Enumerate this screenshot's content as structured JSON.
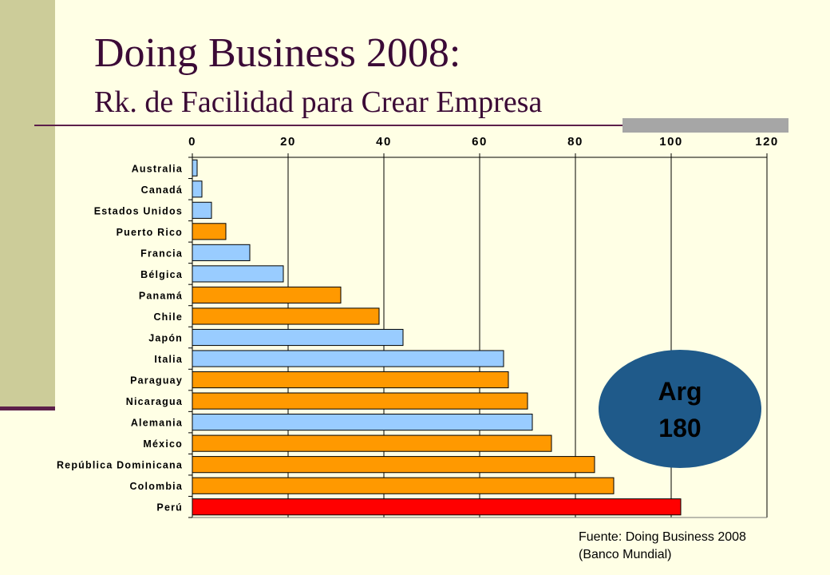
{
  "title": "Doing Business 2008:",
  "subtitle": "Rk. de Facilidad para Crear Empresa",
  "source_line1": "Fuente: Doing Business 2008",
  "source_line2": "(Banco Mundial)",
  "badge": {
    "label": "Arg",
    "value": "180"
  },
  "colors": {
    "other": "#99ccff",
    "latam": "#ff9900",
    "peru": "#ff0000",
    "badge": "#1f5a8a"
  },
  "chart_data": {
    "type": "bar",
    "orientation": "horizontal",
    "axis_position": "top",
    "xlim": [
      0,
      120
    ],
    "ticks": [
      0,
      20,
      40,
      60,
      80,
      100,
      120
    ],
    "grid": true,
    "categories": [
      "Australia",
      "Canadá",
      "Estados Unidos",
      "Puerto Rico",
      "Francia",
      "Bélgica",
      "Panamá",
      "Chile",
      "Japón",
      "Italia",
      "Paraguay",
      "Nicaragua",
      "Alemania",
      "México",
      "República Dominicana",
      "Colombia",
      "Perú"
    ],
    "values": [
      1,
      2,
      4,
      7,
      12,
      19,
      31,
      39,
      44,
      65,
      66,
      70,
      71,
      75,
      84,
      88,
      102
    ],
    "bar_colors": [
      "other",
      "other",
      "other",
      "latam",
      "other",
      "other",
      "latam",
      "latam",
      "other",
      "other",
      "latam",
      "latam",
      "other",
      "latam",
      "latam",
      "latam",
      "peru"
    ]
  }
}
